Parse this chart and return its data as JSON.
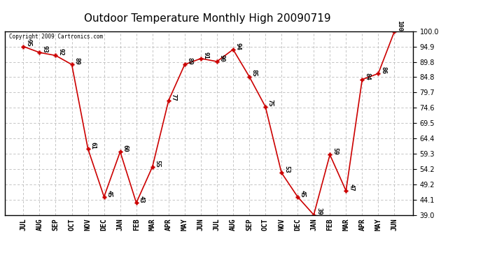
{
  "title": "Outdoor Temperature Monthly High 20090719",
  "copyright": "Copyright 2009 Cartronics.com",
  "months": [
    "JUL",
    "AUG",
    "SEP",
    "OCT",
    "NOV",
    "DEC",
    "JAN",
    "FEB",
    "MAR",
    "APR",
    "MAY",
    "JUN",
    "JUL",
    "AUG",
    "SEP",
    "OCT",
    "NOV",
    "DEC",
    "JAN",
    "FEB",
    "MAR",
    "APR",
    "MAY",
    "JUN"
  ],
  "values": [
    95,
    93,
    92,
    89,
    61,
    45,
    60,
    43,
    55,
    77,
    89,
    91,
    90,
    94,
    85,
    75,
    53,
    45,
    39,
    59,
    47,
    84,
    86,
    100
  ],
  "line_color": "#cc0000",
  "marker": "+",
  "marker_size": 5,
  "ylim_min": 39.0,
  "ylim_max": 100.0,
  "yticks": [
    39.0,
    44.1,
    49.2,
    54.2,
    59.3,
    64.4,
    69.5,
    74.6,
    79.7,
    84.8,
    89.8,
    94.9,
    100.0
  ],
  "bg_color": "#ffffff",
  "grid_color": "#bbbbbb",
  "title_fontsize": 11,
  "label_fontsize": 7,
  "annotation_fontsize": 6.5
}
